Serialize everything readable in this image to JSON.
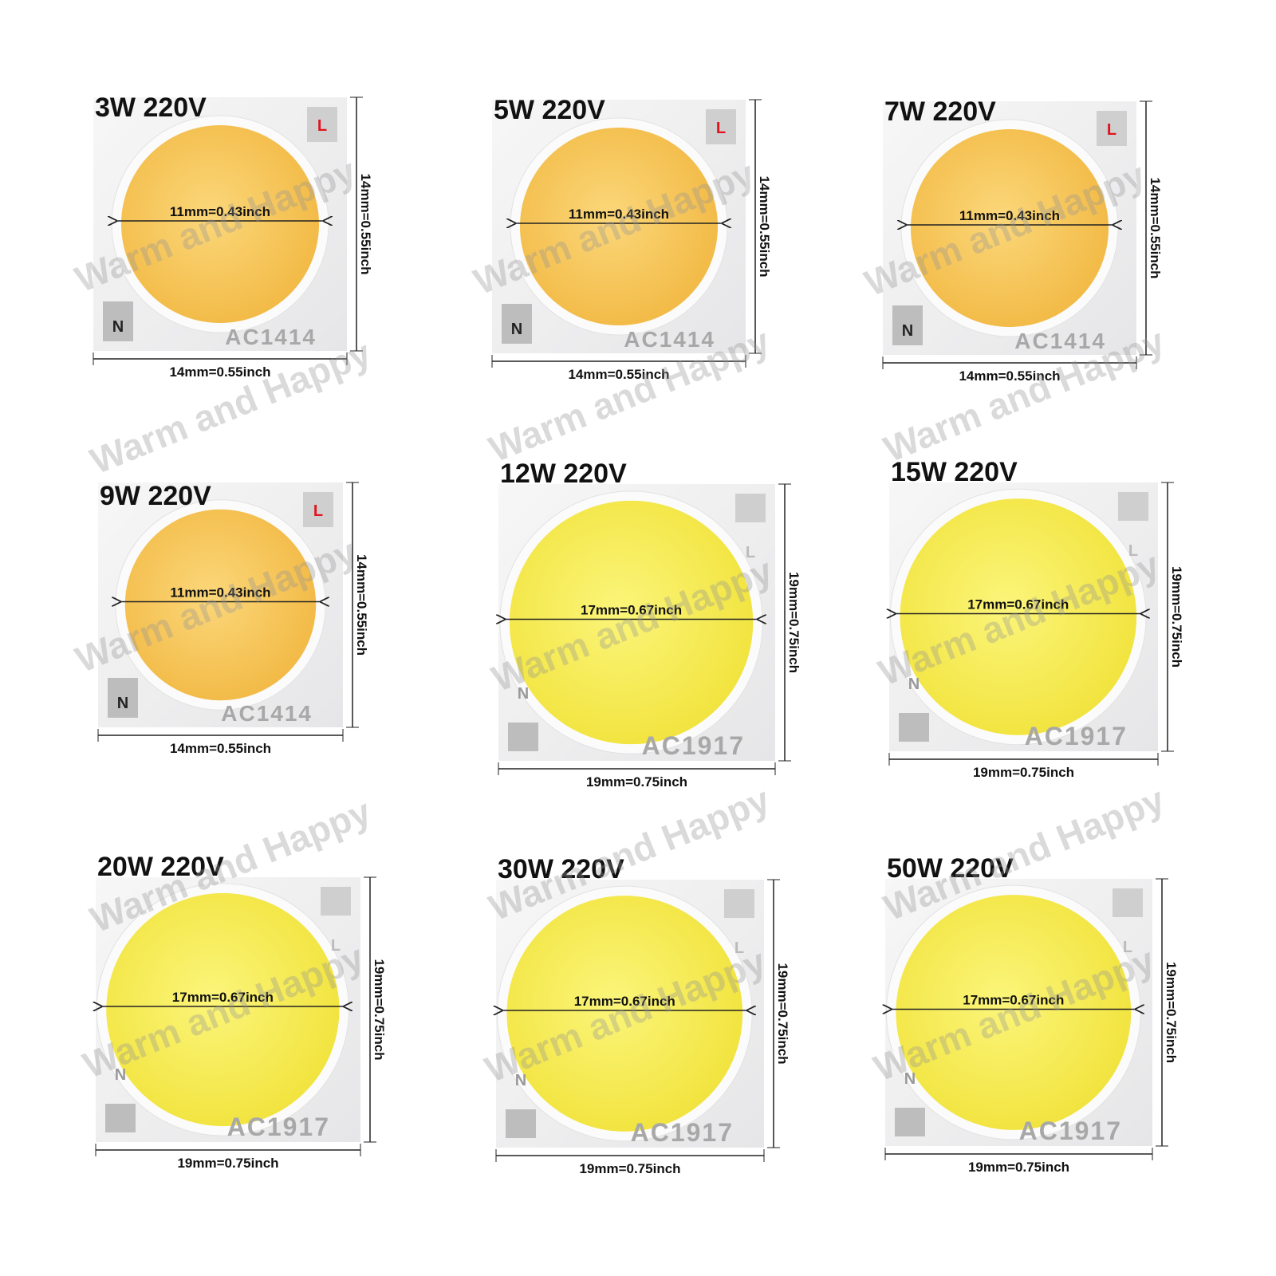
{
  "watermark": "Warm and Happy",
  "panels": [
    {
      "title": "3W 220V",
      "diameter": "11mm=0.43inch",
      "width": "14mm=0.55inch",
      "height": "14mm=0.55inch",
      "model": "AC1414",
      "n": "N",
      "l": "L"
    },
    {
      "title": "5W 220V",
      "diameter": "11mm=0.43inch",
      "width": "14mm=0.55inch",
      "height": "14mm=0.55inch",
      "model": "AC1414",
      "n": "N",
      "l": "L"
    },
    {
      "title": "7W 220V",
      "diameter": "11mm=0.43inch",
      "width": "14mm=0.55inch",
      "height": "14mm=0.55inch",
      "model": "AC1414",
      "n": "N",
      "l": "L"
    },
    {
      "title": "9W 220V",
      "diameter": "11mm=0.43inch",
      "width": "14mm=0.55inch",
      "height": "14mm=0.55inch",
      "model": "AC1414",
      "n": "N",
      "l": "L"
    },
    {
      "title": "12W 220V",
      "diameter": "17mm=0.67inch",
      "width": "19mm=0.75inch",
      "height": "19mm=0.75inch",
      "model": "AC1917",
      "n": "N",
      "l": "L"
    },
    {
      "title": "15W 220V",
      "diameter": "17mm=0.67inch",
      "width": "19mm=0.75inch",
      "height": "19mm=0.75inch",
      "model": "AC1917",
      "n": "N",
      "l": "L"
    },
    {
      "title": "20W 220V",
      "diameter": "17mm=0.67inch",
      "width": "19mm=0.75inch",
      "height": "19mm=0.75inch",
      "model": "AC1917",
      "n": "N",
      "l": "L"
    },
    {
      "title": "30W 220V",
      "diameter": "17mm=0.67inch",
      "width": "19mm=0.75inch",
      "height": "19mm=0.75inch",
      "model": "AC1917",
      "n": "N",
      "l": "L"
    },
    {
      "title": "50W 220V",
      "diameter": "17mm=0.67inch",
      "width": "19mm=0.75inch",
      "height": "19mm=0.75inch",
      "model": "AC1917",
      "n": "N",
      "l": "L"
    }
  ]
}
